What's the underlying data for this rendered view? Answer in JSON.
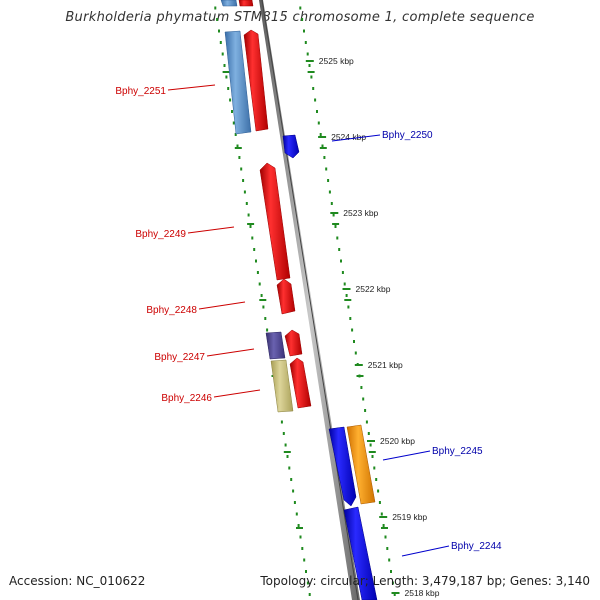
{
  "title": "Burkholderia phymatum STM815 chromosome 1, complete sequence",
  "footer": {
    "accession": "Accession: NC_010622",
    "topology": "Topology: circular; Length: 3,479,187 bp; Genes: 3,140"
  },
  "colors": {
    "gene_forward": "#ff0000",
    "gene_reverse": "#0000ff",
    "steelblue": "#5a8fc8",
    "slateblue": "#4b4494",
    "khaki": "#c8c07a",
    "orange": "#ff9900",
    "ruler_ticks": "#1f8a1f",
    "label_red": "#cc0000",
    "label_blue": "#0000aa"
  },
  "kbp_ticks": [
    "2525 kbp",
    "2524 kbp",
    "2523 kbp",
    "2522 kbp",
    "2521 kbp",
    "2520 kbp",
    "2519 kbp",
    "2518 kbp"
  ],
  "gene_labels": [
    {
      "name": "Bphy_2251",
      "color": "red"
    },
    {
      "name": "Bphy_2250",
      "color": "blue"
    },
    {
      "name": "Bphy_2249",
      "color": "red"
    },
    {
      "name": "Bphy_2248",
      "color": "red"
    },
    {
      "name": "Bphy_2247",
      "color": "red"
    },
    {
      "name": "Bphy_2246",
      "color": "red"
    },
    {
      "name": "Bphy_2245",
      "color": "blue"
    },
    {
      "name": "Bphy_2244",
      "color": "blue"
    }
  ]
}
